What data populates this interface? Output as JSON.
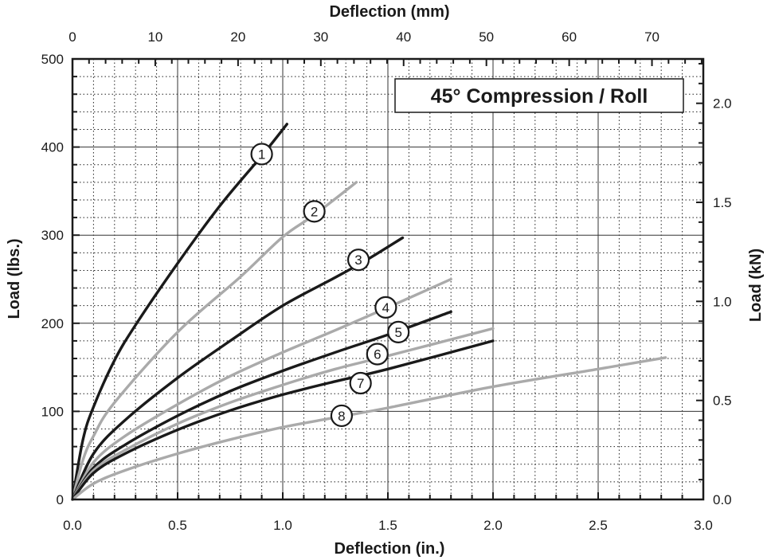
{
  "chart_data": {
    "type": "line",
    "title": "45° Compression / Roll",
    "xlabel": "Deflection (in.)",
    "ylabel": "Load (lbs.)",
    "x2label": "Deflection (mm)",
    "y2label": "Load (kN)",
    "xlim": [
      0,
      3.0
    ],
    "ylim": [
      0,
      500
    ],
    "x2lim": [
      0,
      76.2
    ],
    "y2lim": [
      0,
      2.224
    ],
    "x_ticks": [
      "0.0",
      "0.5",
      "1.0",
      "1.5",
      "2.0",
      "2.5",
      "3.0"
    ],
    "y_ticks": [
      "0",
      "100",
      "200",
      "300",
      "400",
      "500"
    ],
    "x2_ticks": [
      "0",
      "10",
      "20",
      "30",
      "40",
      "50",
      "60",
      "70"
    ],
    "y2_ticks": [
      "0.0",
      "0.5",
      "1.0",
      "1.5",
      "2.0"
    ],
    "grid": true,
    "series": [
      {
        "name": "1",
        "color": "#1a1a1a",
        "x": [
          0,
          0.05,
          0.1,
          0.2,
          0.3,
          0.5,
          0.7,
          0.9,
          1.02
        ],
        "y": [
          0,
          68,
          105,
          158,
          198,
          268,
          333,
          390,
          426
        ],
        "marker_at": [
          0.9,
          392
        ]
      },
      {
        "name": "2",
        "color": "#aaaaaa",
        "x": [
          0,
          0.05,
          0.1,
          0.2,
          0.5,
          0.8,
          1.0,
          1.15,
          1.35
        ],
        "y": [
          0,
          45,
          72,
          110,
          190,
          253,
          298,
          323,
          360
        ],
        "marker_at": [
          1.15,
          327
        ]
      },
      {
        "name": "3",
        "color": "#1a1a1a",
        "x": [
          0,
          0.1,
          0.25,
          0.5,
          0.75,
          1.0,
          1.25,
          1.4,
          1.57
        ],
        "y": [
          0,
          52,
          90,
          138,
          180,
          220,
          252,
          272,
          297
        ],
        "marker_at": [
          1.36,
          272
        ]
      },
      {
        "name": "4",
        "color": "#aaaaaa",
        "x": [
          0,
          0.1,
          0.25,
          0.5,
          0.75,
          1.0,
          1.25,
          1.5,
          1.8
        ],
        "y": [
          0,
          42,
          72,
          108,
          140,
          167,
          192,
          218,
          250
        ],
        "marker_at": [
          1.49,
          218
        ]
      },
      {
        "name": "5",
        "color": "#1a1a1a",
        "x": [
          0,
          0.1,
          0.25,
          0.5,
          0.75,
          1.0,
          1.25,
          1.5,
          1.8
        ],
        "y": [
          0,
          36,
          62,
          95,
          123,
          146,
          167,
          187,
          213
        ],
        "marker_at": [
          1.55,
          190
        ]
      },
      {
        "name": "6",
        "color": "#aaaaaa",
        "x": [
          0,
          0.1,
          0.25,
          0.5,
          0.75,
          1.0,
          1.25,
          1.5,
          2.0
        ],
        "y": [
          0,
          33,
          56,
          86,
          110,
          130,
          148,
          163,
          194
        ],
        "marker_at": [
          1.45,
          165
        ]
      },
      {
        "name": "7",
        "color": "#1a1a1a",
        "x": [
          0,
          0.1,
          0.25,
          0.5,
          0.75,
          1.0,
          1.25,
          1.5,
          2.0
        ],
        "y": [
          0,
          30,
          52,
          79,
          101,
          119,
          134,
          148,
          180
        ],
        "marker_at": [
          1.37,
          132
        ]
      },
      {
        "name": "8",
        "color": "#aaaaaa",
        "x": [
          0,
          0.1,
          0.25,
          0.5,
          0.75,
          1.0,
          1.25,
          1.5,
          2.0,
          2.5,
          2.82
        ],
        "y": [
          0,
          18,
          33,
          52,
          68,
          82,
          93,
          104,
          128,
          148,
          161
        ],
        "marker_at": [
          1.28,
          95
        ]
      }
    ]
  }
}
